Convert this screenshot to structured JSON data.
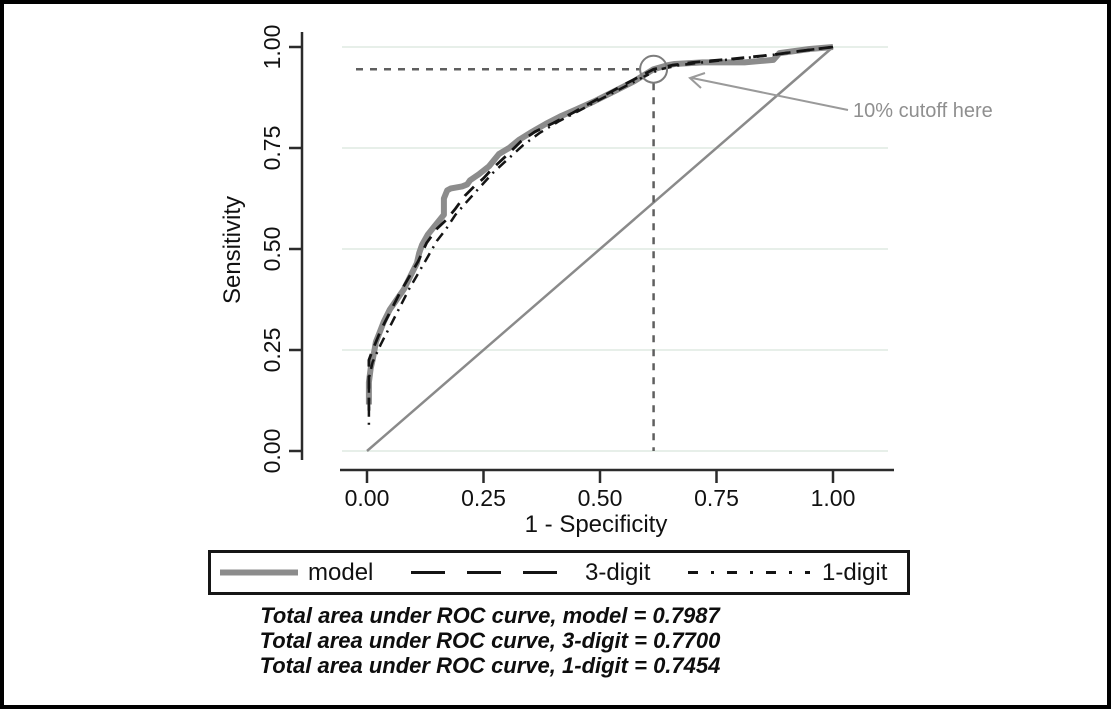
{
  "window": {
    "background": "#ffffff",
    "frame_color": "#000000"
  },
  "chart_data": {
    "type": "line",
    "title": "",
    "xlabel": "1 - Specificity",
    "ylabel": "Sensitivity",
    "xlim": [
      0,
      1
    ],
    "ylim": [
      0,
      1
    ],
    "grid": "horizontal",
    "gridline_color": "#e7efe9",
    "axis_color": "#2b2b2b",
    "x_tick_values": [
      0,
      0.25,
      0.5,
      0.75,
      1
    ],
    "x_tick_labels": [
      "0.00",
      "0.25",
      "0.50",
      "0.75",
      "1.00"
    ],
    "y_tick_values": [
      0,
      0.25,
      0.5,
      0.75,
      1
    ],
    "y_tick_labels": [
      "0.00",
      "0.25",
      "0.50",
      "0.75",
      "1.00"
    ],
    "diagonal_reference": {
      "from": [
        0,
        0
      ],
      "to": [
        1,
        1
      ],
      "color": "#8a8a8a"
    },
    "cutoff_marker": {
      "x": 0.615,
      "y": 0.945,
      "label": "10% cutoff here",
      "color": "#8f8f8f",
      "guide_color": "#5f5f5f"
    },
    "series": [
      {
        "name": "model",
        "auc": "0.7987",
        "color": "#8c8c8c",
        "width": 6,
        "dash": "solid",
        "points": [
          [
            0.004,
            0.115
          ],
          [
            0.004,
            0.17
          ],
          [
            0.008,
            0.205
          ],
          [
            0.012,
            0.225
          ],
          [
            0.016,
            0.25
          ],
          [
            0.019,
            0.27
          ],
          [
            0.026,
            0.29
          ],
          [
            0.036,
            0.32
          ],
          [
            0.049,
            0.35
          ],
          [
            0.064,
            0.375
          ],
          [
            0.079,
            0.4
          ],
          [
            0.094,
            0.435
          ],
          [
            0.107,
            0.465
          ],
          [
            0.112,
            0.49
          ],
          [
            0.118,
            0.51
          ],
          [
            0.13,
            0.535
          ],
          [
            0.144,
            0.555
          ],
          [
            0.158,
            0.575
          ],
          [
            0.165,
            0.585
          ],
          [
            0.165,
            0.625
          ],
          [
            0.172,
            0.645
          ],
          [
            0.18,
            0.65
          ],
          [
            0.204,
            0.655
          ],
          [
            0.215,
            0.66
          ],
          [
            0.221,
            0.67
          ],
          [
            0.24,
            0.685
          ],
          [
            0.262,
            0.705
          ],
          [
            0.283,
            0.735
          ],
          [
            0.305,
            0.75
          ],
          [
            0.326,
            0.77
          ],
          [
            0.354,
            0.79
          ],
          [
            0.384,
            0.81
          ],
          [
            0.418,
            0.83
          ],
          [
            0.448,
            0.845
          ],
          [
            0.487,
            0.865
          ],
          [
            0.53,
            0.89
          ],
          [
            0.573,
            0.915
          ],
          [
            0.615,
            0.945
          ],
          [
            0.645,
            0.955
          ],
          [
            0.66,
            0.958
          ],
          [
            0.72,
            0.962
          ],
          [
            0.81,
            0.962
          ],
          [
            0.872,
            0.968
          ],
          [
            0.885,
            0.985
          ],
          [
            0.95,
            0.995
          ],
          [
            1,
            1
          ]
        ]
      },
      {
        "name": "3-digit",
        "auc": "0.7700",
        "color": "#141414",
        "width": 2.8,
        "dash": "long-dash",
        "points": [
          [
            0.004,
            0.1
          ],
          [
            0.004,
            0.225
          ],
          [
            0.012,
            0.25
          ],
          [
            0.03,
            0.3
          ],
          [
            0.05,
            0.345
          ],
          [
            0.07,
            0.39
          ],
          [
            0.09,
            0.43
          ],
          [
            0.11,
            0.47
          ],
          [
            0.128,
            0.515
          ],
          [
            0.15,
            0.55
          ],
          [
            0.17,
            0.572
          ],
          [
            0.19,
            0.6
          ],
          [
            0.21,
            0.632
          ],
          [
            0.23,
            0.655
          ],
          [
            0.25,
            0.675
          ],
          [
            0.27,
            0.7
          ],
          [
            0.3,
            0.732
          ],
          [
            0.33,
            0.766
          ],
          [
            0.36,
            0.79
          ],
          [
            0.4,
            0.812
          ],
          [
            0.44,
            0.836
          ],
          [
            0.48,
            0.862
          ],
          [
            0.52,
            0.887
          ],
          [
            0.56,
            0.912
          ],
          [
            0.6,
            0.936
          ],
          [
            0.615,
            0.945
          ],
          [
            0.655,
            0.955
          ],
          [
            0.7,
            0.962
          ],
          [
            0.74,
            0.966
          ],
          [
            0.78,
            0.97
          ],
          [
            0.83,
            0.976
          ],
          [
            0.88,
            0.982
          ],
          [
            0.93,
            0.99
          ],
          [
            1,
            1
          ]
        ]
      },
      {
        "name": "1-digit",
        "auc": "0.7454",
        "color": "#141414",
        "width": 2.5,
        "dash": "dash-dot",
        "points": [
          [
            0.004,
            0.065
          ],
          [
            0.004,
            0.18
          ],
          [
            0.012,
            0.22
          ],
          [
            0.03,
            0.265
          ],
          [
            0.05,
            0.31
          ],
          [
            0.07,
            0.355
          ],
          [
            0.09,
            0.4
          ],
          [
            0.11,
            0.44
          ],
          [
            0.13,
            0.48
          ],
          [
            0.15,
            0.52
          ],
          [
            0.17,
            0.55
          ],
          [
            0.19,
            0.585
          ],
          [
            0.215,
            0.618
          ],
          [
            0.24,
            0.65
          ],
          [
            0.27,
            0.688
          ],
          [
            0.3,
            0.72
          ],
          [
            0.335,
            0.757
          ],
          [
            0.37,
            0.787
          ],
          [
            0.41,
            0.815
          ],
          [
            0.455,
            0.842
          ],
          [
            0.5,
            0.87
          ],
          [
            0.55,
            0.9
          ],
          [
            0.6,
            0.93
          ],
          [
            0.63,
            0.945
          ],
          [
            0.67,
            0.955
          ],
          [
            0.72,
            0.962
          ],
          [
            0.77,
            0.968
          ],
          [
            0.83,
            0.975
          ],
          [
            0.88,
            0.982
          ],
          [
            0.93,
            0.99
          ],
          [
            1,
            1
          ]
        ]
      }
    ]
  },
  "legend": {
    "items": [
      {
        "label": "model",
        "style": "solid",
        "color": "#8c8c8c",
        "thickness": 6
      },
      {
        "label": "3-digit",
        "style": "long-dash",
        "color": "#141414",
        "thickness": 3
      },
      {
        "label": "1-digit",
        "style": "dash-dot",
        "color": "#141414",
        "thickness": 3
      }
    ]
  },
  "notes": {
    "lines": [
      "Total area under ROC curve, model = 0.7987",
      "Total area under ROC curve, 3-digit = 0.7700",
      "Total area under ROC curve, 1-digit = 0.7454"
    ]
  }
}
